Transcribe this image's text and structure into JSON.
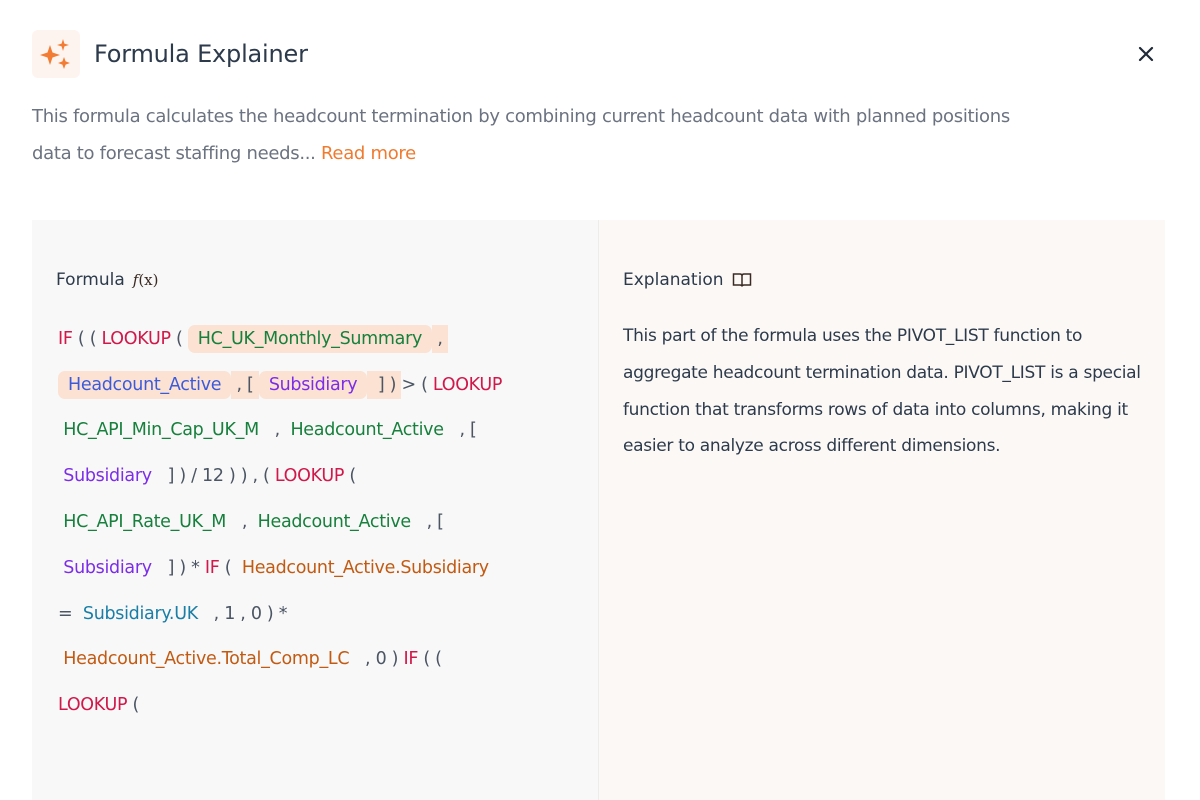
{
  "header": {
    "title": "Formula Explainer",
    "logo_icon": "sparkles-icon",
    "close_icon": "close-icon"
  },
  "description": {
    "text": "This formula calculates the headcount termination by combining current headcount data with planned positions data to forecast staffing needs...",
    "read_more": "Read more"
  },
  "formula": {
    "title": "Formula",
    "title_icon": "function-fx-icon",
    "lines": [
      [
        {
          "t": "IF",
          "c": "kw"
        },
        {
          "t": " ( ( ",
          "c": "p"
        },
        {
          "t": "LOOKUP",
          "c": "kw"
        },
        {
          "t": " ( ",
          "c": "p"
        },
        {
          "t": "HC_UK_Monthly_Summary",
          "c": "ds",
          "chip": true
        },
        {
          "t": " , ",
          "c": "p",
          "hl": true
        }
      ],
      [
        {
          "t": "Headcount_Active",
          "c": "col",
          "chip": true
        },
        {
          "t": " , [ ",
          "c": "p",
          "hl": true
        },
        {
          "t": "Subsidiary",
          "c": "dim",
          "chip": true
        },
        {
          "t": "  ] ) ",
          "c": "p",
          "hl": true
        },
        {
          "t": "> ( ",
          "c": "p"
        },
        {
          "t": "LOOKUP",
          "c": "kw"
        }
      ],
      [
        {
          "t": " HC_API_Min_Cap_UK_M",
          "c": "ds"
        },
        {
          "t": "   ,  ",
          "c": "p"
        },
        {
          "t": "Headcount_Active",
          "c": "ds"
        },
        {
          "t": "   , [",
          "c": "p"
        }
      ],
      [
        {
          "t": " Subsidiary",
          "c": "dim"
        },
        {
          "t": "   ] ) / 12 ) ) , ( ",
          "c": "p"
        },
        {
          "t": "LOOKUP",
          "c": "kw"
        },
        {
          "t": " (",
          "c": "p"
        }
      ],
      [
        {
          "t": " HC_API_Rate_UK_M",
          "c": "ds"
        },
        {
          "t": "   ,  ",
          "c": "p"
        },
        {
          "t": "Headcount_Active",
          "c": "ds"
        },
        {
          "t": "   , [",
          "c": "p"
        }
      ],
      [
        {
          "t": " Subsidiary",
          "c": "dim"
        },
        {
          "t": "   ] ) * ",
          "c": "p"
        },
        {
          "t": "IF",
          "c": "kw"
        },
        {
          "t": " (  ",
          "c": "p"
        },
        {
          "t": "Headcount_Active.Subsidiary",
          "c": "fld"
        }
      ],
      [
        {
          "t": "=  ",
          "c": "p"
        },
        {
          "t": "Subsidiary.UK",
          "c": "mem"
        },
        {
          "t": "   , 1 , 0 ) *",
          "c": "p"
        }
      ],
      [
        {
          "t": " Headcount_Active.Total_Comp_LC",
          "c": "fld"
        },
        {
          "t": "   , 0 ) ",
          "c": "p"
        },
        {
          "t": "IF",
          "c": "kw"
        },
        {
          "t": " ( (",
          "c": "p"
        }
      ],
      [
        {
          "t": "LOOKUP",
          "c": "kw"
        },
        {
          "t": " (",
          "c": "p"
        }
      ]
    ]
  },
  "explanation": {
    "title": "Explanation",
    "title_icon": "book-open-icon",
    "text": "This part of the formula uses the PIVOT_LIST function to aggregate headcount termination data. PIVOT_LIST is a special function that transforms rows of data into columns, making it easier to analyze across different dimensions."
  },
  "colors": {
    "accent": "#f07a2e",
    "keyword": "#d1184a",
    "dataset": "#17803d",
    "column": "#3b5bdb",
    "dimension": "#7c2de8",
    "field": "#c25a12",
    "member": "#1a7ea6",
    "highlight": "#fbe2d3"
  }
}
